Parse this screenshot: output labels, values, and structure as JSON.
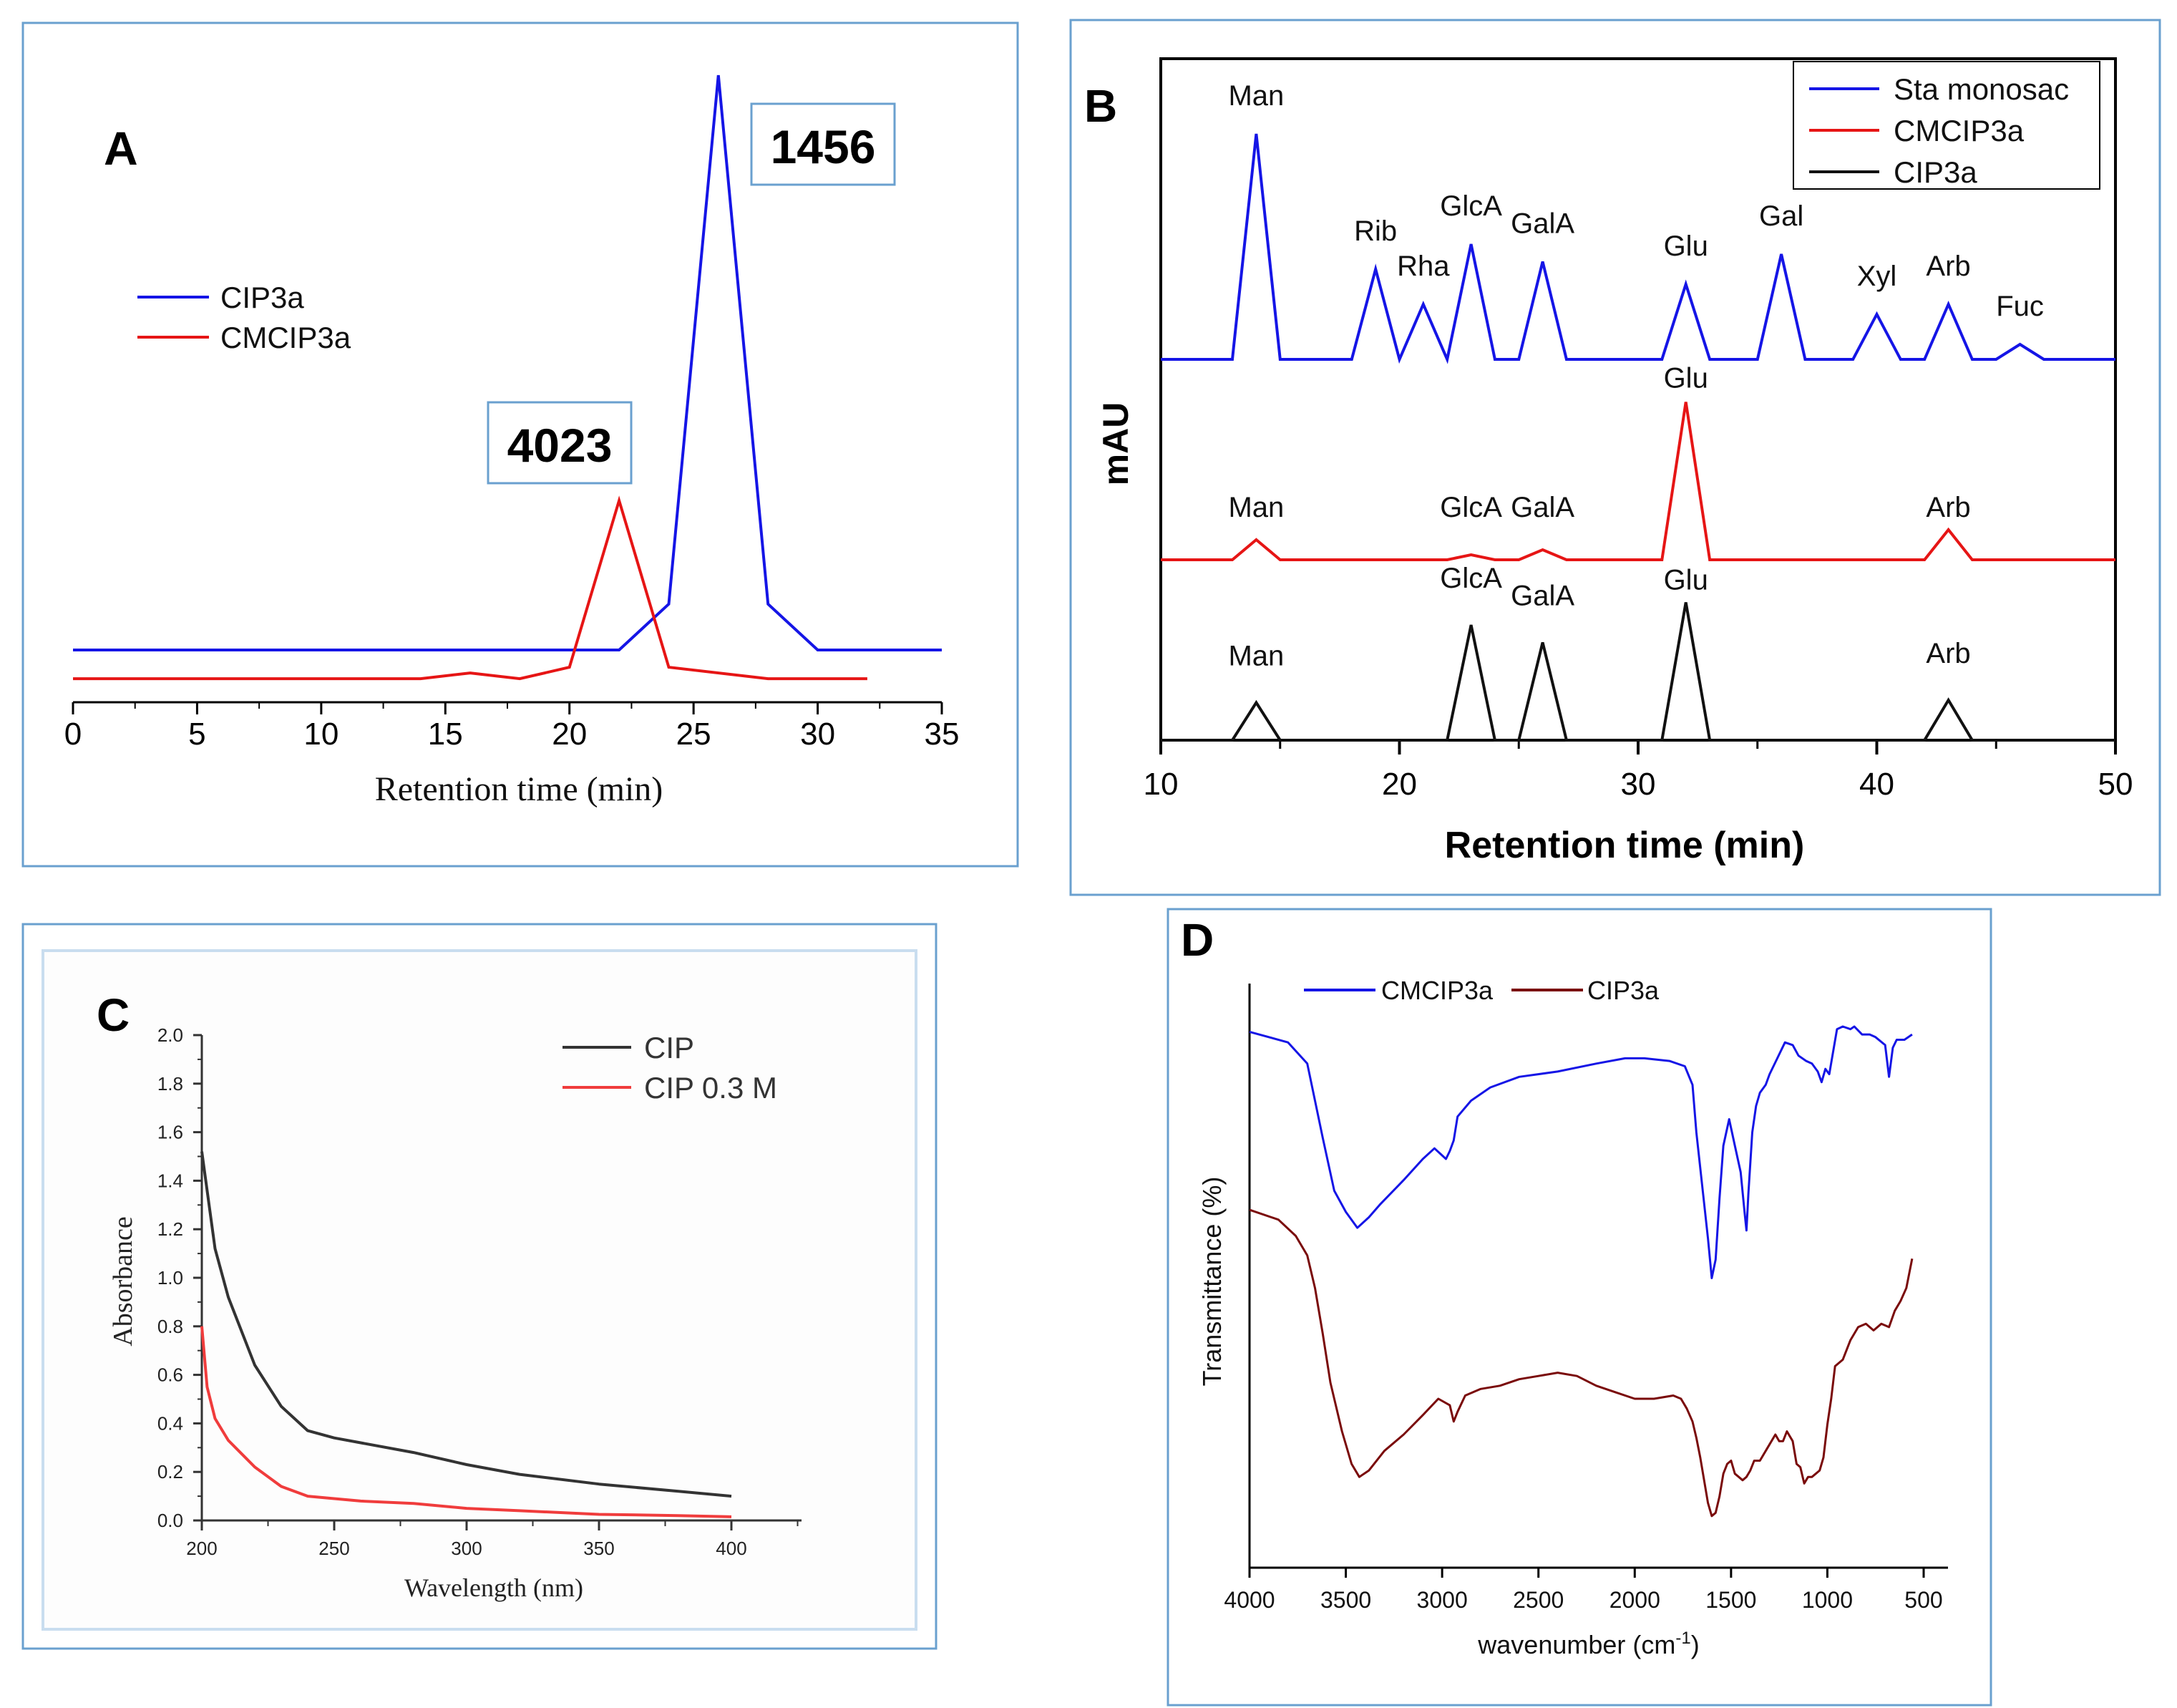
{
  "panels": {
    "A": {
      "letter": "A",
      "annotations": [
        "1456",
        "4023"
      ]
    },
    "B": {
      "letter": "B"
    },
    "C": {
      "letter": "C"
    },
    "D": {
      "letter": "D"
    }
  },
  "chart_data": [
    {
      "id": "A",
      "type": "line",
      "title": "",
      "xlabel": "Retention time (min)",
      "ylabel": "",
      "xlim": [
        0,
        35
      ],
      "xticks": [
        0,
        5,
        10,
        15,
        20,
        25,
        30,
        35
      ],
      "legend_position": "top-left",
      "series": [
        {
          "name": "CIP3a",
          "color": "#1515e6",
          "x": [
            0,
            22,
            24,
            26,
            28,
            30,
            35
          ],
          "y": [
            0,
            0,
            0.08,
            1.0,
            0.08,
            0,
            0
          ]
        },
        {
          "name": "CMCIP3a",
          "color": "#e61515",
          "x": [
            0,
            14,
            16,
            18,
            20,
            22,
            24,
            28,
            32
          ],
          "y": [
            -0.05,
            -0.05,
            -0.04,
            -0.05,
            -0.03,
            0.26,
            -0.03,
            -0.05,
            -0.05
          ]
        }
      ],
      "annotations": [
        {
          "text": "1456",
          "x": 26
        },
        {
          "text": "4023",
          "x": 22
        }
      ]
    },
    {
      "id": "B",
      "type": "line",
      "title": "",
      "xlabel": "Retention time (min)",
      "ylabel": "mAU",
      "xlim": [
        10,
        50
      ],
      "xticks": [
        10,
        20,
        30,
        40,
        50
      ],
      "legend_position": "top-right",
      "series": [
        {
          "name": "Sta monosac",
          "color": "#1515e6",
          "peaks": [
            {
              "label": "Man",
              "x": 14,
              "height": 0.9
            },
            {
              "label": "Rib",
              "x": 19,
              "height": 0.36
            },
            {
              "label": "Rha",
              "x": 21,
              "height": 0.22
            },
            {
              "label": "GlcA",
              "x": 23,
              "height": 0.46
            },
            {
              "label": "GalA",
              "x": 26,
              "height": 0.39
            },
            {
              "label": "Glu",
              "x": 32,
              "height": 0.3
            },
            {
              "label": "Gal",
              "x": 36,
              "height": 0.42
            },
            {
              "label": "Xyl",
              "x": 40,
              "height": 0.18
            },
            {
              "label": "Arb",
              "x": 43,
              "height": 0.22
            },
            {
              "label": "Fuc",
              "x": 46,
              "height": 0.06
            }
          ]
        },
        {
          "name": "CMCIP3a",
          "color": "#e61515",
          "peaks": [
            {
              "label": "Man",
              "x": 14,
              "height": 0.08
            },
            {
              "label": "GlcA",
              "x": 23,
              "height": 0.02
            },
            {
              "label": "GalA",
              "x": 26,
              "height": 0.04
            },
            {
              "label": "Glu",
              "x": 32,
              "height": 0.63
            },
            {
              "label": "Arb",
              "x": 43,
              "height": 0.12
            }
          ]
        },
        {
          "name": "CIP3a",
          "color": "#111111",
          "peaks": [
            {
              "label": "Man",
              "x": 14,
              "height": 0.15
            },
            {
              "label": "GlcA",
              "x": 23,
              "height": 0.46
            },
            {
              "label": "GalA",
              "x": 26,
              "height": 0.39
            },
            {
              "label": "Glu",
              "x": 32,
              "height": 0.55
            },
            {
              "label": "Arb",
              "x": 43,
              "height": 0.16
            }
          ]
        }
      ]
    },
    {
      "id": "C",
      "type": "line",
      "title": "",
      "xlabel": "Wavelength (nm)",
      "ylabel": "Absorbance",
      "xlim": [
        200,
        420
      ],
      "ylim": [
        0,
        2.0
      ],
      "xticks": [
        200,
        250,
        300,
        350,
        400
      ],
      "yticks": [
        "0.0",
        "0.2",
        "0.4",
        "0.6",
        "0.8",
        "1.0",
        "1.2",
        "1.4",
        "1.6",
        "1.8",
        "2.0"
      ],
      "legend_position": "top-right",
      "series": [
        {
          "name": "CIP",
          "color": "#333333",
          "x": [
            200,
            205,
            210,
            220,
            230,
            240,
            250,
            260,
            280,
            300,
            320,
            350,
            380,
            400
          ],
          "y": [
            1.52,
            1.12,
            0.92,
            0.64,
            0.47,
            0.37,
            0.34,
            0.32,
            0.28,
            0.23,
            0.19,
            0.15,
            0.12,
            0.1
          ]
        },
        {
          "name": "CIP 0.3 M",
          "color": "#f03c3c",
          "x": [
            200,
            202,
            205,
            210,
            220,
            230,
            240,
            250,
            260,
            280,
            300,
            320,
            350,
            380,
            400
          ],
          "y": [
            0.8,
            0.55,
            0.42,
            0.33,
            0.22,
            0.14,
            0.1,
            0.09,
            0.08,
            0.07,
            0.05,
            0.04,
            0.025,
            0.02,
            0.015
          ]
        }
      ]
    },
    {
      "id": "D",
      "type": "line",
      "title": "",
      "xlabel": "wavenumber (cm",
      "xlabel_superscript": "-1",
      "xlabel_suffix": ")",
      "ylabel": "Transmittance (%)",
      "xlim": [
        4000,
        400
      ],
      "xticks": [
        4000,
        3500,
        3000,
        2500,
        2000,
        1500,
        1000,
        500
      ],
      "legend_position": "top",
      "series": [
        {
          "name": "CMCIP3a",
          "color": "#1515e6",
          "x": [
            4000,
            3800,
            3700,
            3620,
            3560,
            3500,
            3440,
            3380,
            3320,
            3200,
            3100,
            3040,
            3010,
            2980,
            2960,
            2940,
            2920,
            2850,
            2750,
            2600,
            2400,
            2200,
            2050,
            1950,
            1820,
            1740,
            1700,
            1680,
            1650,
            1620,
            1600,
            1580,
            1560,
            1540,
            1510,
            1480,
            1450,
            1430,
            1420,
            1410,
            1390,
            1370,
            1350,
            1320,
            1300,
            1260,
            1220,
            1180,
            1150,
            1110,
            1080,
            1050,
            1030,
            1010,
            990,
            950,
            920,
            880,
            860,
            820,
            780,
            750,
            700,
            680,
            660,
            640,
            600,
            560
          ],
          "y": [
            0.98,
            0.94,
            0.86,
            0.58,
            0.38,
            0.3,
            0.24,
            0.28,
            0.33,
            0.42,
            0.5,
            0.54,
            0.52,
            0.5,
            0.53,
            0.57,
            0.66,
            0.72,
            0.77,
            0.81,
            0.83,
            0.86,
            0.88,
            0.88,
            0.87,
            0.85,
            0.78,
            0.6,
            0.4,
            0.2,
            0.05,
            0.12,
            0.35,
            0.55,
            0.65,
            0.55,
            0.45,
            0.3,
            0.23,
            0.37,
            0.6,
            0.7,
            0.75,
            0.78,
            0.82,
            0.88,
            0.94,
            0.93,
            0.89,
            0.87,
            0.86,
            0.83,
            0.79,
            0.84,
            0.82,
            0.99,
            1.0,
            0.99,
            1.0,
            0.97,
            0.97,
            0.96,
            0.93,
            0.81,
            0.92,
            0.95,
            0.95,
            0.97
          ]
        },
        {
          "name": "CIP3a",
          "color": "#7a0a0a",
          "x": [
            4000,
            3850,
            3760,
            3700,
            3660,
            3620,
            3580,
            3520,
            3470,
            3430,
            3380,
            3300,
            3200,
            3100,
            3020,
            2960,
            2940,
            2920,
            2880,
            2800,
            2700,
            2600,
            2500,
            2400,
            2300,
            2200,
            2100,
            2000,
            1900,
            1800,
            1760,
            1730,
            1700,
            1680,
            1660,
            1640,
            1620,
            1600,
            1580,
            1560,
            1540,
            1520,
            1500,
            1480,
            1460,
            1440,
            1420,
            1400,
            1380,
            1350,
            1320,
            1300,
            1270,
            1250,
            1230,
            1210,
            1180,
            1160,
            1140,
            1120,
            1100,
            1080,
            1060,
            1040,
            1020,
            1000,
            980,
            960,
            920,
            880,
            840,
            800,
            760,
            720,
            680,
            650,
            620,
            590,
            560
          ],
          "y": [
            0.98,
            0.95,
            0.9,
            0.84,
            0.74,
            0.6,
            0.45,
            0.3,
            0.2,
            0.16,
            0.18,
            0.24,
            0.29,
            0.35,
            0.4,
            0.38,
            0.33,
            0.36,
            0.41,
            0.43,
            0.44,
            0.46,
            0.47,
            0.48,
            0.47,
            0.44,
            0.42,
            0.4,
            0.4,
            0.41,
            0.4,
            0.37,
            0.33,
            0.28,
            0.22,
            0.15,
            0.08,
            0.04,
            0.05,
            0.1,
            0.17,
            0.2,
            0.21,
            0.17,
            0.16,
            0.15,
            0.16,
            0.18,
            0.21,
            0.21,
            0.24,
            0.26,
            0.29,
            0.27,
            0.27,
            0.3,
            0.27,
            0.2,
            0.19,
            0.14,
            0.16,
            0.16,
            0.17,
            0.18,
            0.22,
            0.32,
            0.4,
            0.5,
            0.52,
            0.58,
            0.62,
            0.63,
            0.61,
            0.63,
            0.62,
            0.67,
            0.7,
            0.74,
            0.83
          ]
        }
      ]
    }
  ]
}
